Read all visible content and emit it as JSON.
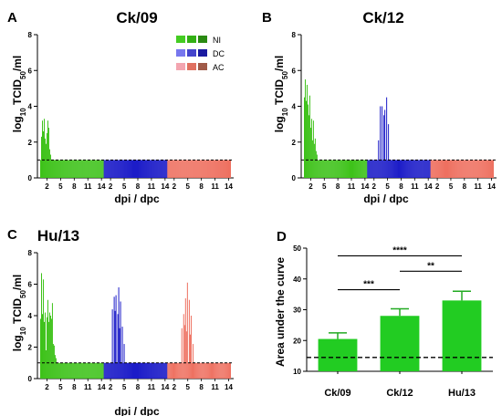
{
  "figure": {
    "panels": [
      {
        "letter": "A",
        "title": "Ck/09"
      },
      {
        "letter": "B",
        "title": "Ck/12"
      },
      {
        "letter": "C",
        "title": "Hu/13"
      },
      {
        "letter": "D",
        "title": ""
      }
    ]
  },
  "colors": {
    "NI": "#3ec21a",
    "DC": "#1c1cc8",
    "AC": "#ee7060",
    "legend_NI": [
      "#44cc22",
      "#33b015",
      "#2a8a12"
    ],
    "legend_DC": [
      "#7777ee",
      "#4444cc",
      "#1a1aa0"
    ],
    "legend_AC": [
      "#f3a5b0",
      "#e07060",
      "#a05a48"
    ],
    "bar": "#22cc22",
    "errorbar": "#22aa22"
  },
  "chart_data": [
    {
      "type": "bar",
      "panel": "A",
      "title": "Ck/09",
      "ylabel": "log10 TCID50/ml",
      "xlabel": "dpi / dpc",
      "ylim": [
        0,
        8
      ],
      "yticks": [
        0,
        2,
        4,
        6,
        8
      ],
      "day_ticks": [
        "2",
        "5",
        "8",
        "11",
        "14"
      ],
      "detection_limit": 1,
      "legend": [
        "NI",
        "DC",
        "AC"
      ],
      "legend_placement": "top-right",
      "series": [
        {
          "name": "NI",
          "values": [
            1,
            2.3,
            3.2,
            2.6,
            3.3,
            2.2,
            1.9,
            2.5,
            3.2,
            2.8,
            1.6,
            1.3,
            1,
            1,
            1,
            1,
            1,
            1,
            1,
            1,
            1,
            1,
            1,
            1,
            1,
            1,
            1,
            1,
            1,
            1,
            1,
            1,
            1,
            1,
            1,
            1,
            1,
            1,
            1,
            1,
            1,
            1,
            1,
            1,
            1,
            1,
            1,
            1,
            1,
            1,
            1,
            1,
            1,
            1,
            1,
            1,
            1,
            1,
            1,
            1,
            1,
            1,
            1,
            1,
            1,
            1,
            1,
            1,
            1,
            1
          ]
        },
        {
          "name": "DC",
          "values": [
            1,
            1,
            1,
            1,
            1,
            1,
            1,
            1,
            1,
            1,
            1,
            1,
            1,
            1,
            1,
            1,
            1,
            1,
            1,
            1,
            1,
            1,
            1,
            1,
            1,
            1,
            1,
            1,
            1,
            1,
            1,
            1,
            1,
            1,
            1,
            1,
            1,
            1,
            1,
            1,
            1,
            1,
            1,
            1,
            1,
            1,
            1,
            1,
            1,
            1,
            1,
            1,
            1,
            1,
            1,
            1,
            1,
            1,
            1,
            1,
            1,
            1,
            1,
            1,
            1,
            1,
            1,
            1,
            1,
            1
          ]
        },
        {
          "name": "AC",
          "values": [
            1,
            1,
            1,
            1,
            1,
            1,
            1,
            1,
            1,
            1,
            1,
            1,
            1,
            1,
            1,
            1,
            1,
            1,
            1,
            1,
            1,
            1,
            1,
            1,
            1,
            1,
            1,
            1,
            1,
            1,
            1,
            1,
            1,
            1,
            1,
            1,
            1,
            1,
            1,
            1,
            1,
            1,
            1,
            1,
            1,
            1,
            1,
            1,
            1,
            1,
            1,
            1,
            1,
            1,
            1,
            1,
            1,
            1,
            1,
            1,
            1,
            1,
            1,
            1,
            1,
            1,
            1,
            1,
            1,
            1
          ]
        }
      ]
    },
    {
      "type": "bar",
      "panel": "B",
      "title": "Ck/12",
      "ylabel": "log10 TCID50/ml",
      "xlabel": "dpi / dpc",
      "ylim": [
        0,
        8
      ],
      "yticks": [
        0,
        2,
        4,
        6,
        8
      ],
      "day_ticks": [
        "2",
        "5",
        "8",
        "11",
        "14"
      ],
      "detection_limit": 1,
      "series": [
        {
          "name": "NI",
          "values": [
            4.5,
            5.5,
            4.3,
            5.2,
            4.1,
            3.5,
            4.6,
            2.8,
            3.3,
            2.1,
            3.2,
            1.9,
            2.2,
            1.5,
            1.3,
            1,
            1,
            1,
            1,
            1,
            1,
            1,
            1,
            1,
            1,
            1,
            1,
            1,
            1,
            1,
            1,
            1,
            1,
            1,
            1,
            1,
            1,
            1,
            1,
            1,
            1,
            1,
            1,
            1,
            1,
            1,
            1,
            1,
            1,
            1,
            1,
            1,
            1,
            1,
            1,
            1,
            1,
            1,
            1,
            1,
            1,
            1,
            1,
            1,
            1,
            1,
            1,
            1,
            1,
            1
          ]
        },
        {
          "name": "DC",
          "values": [
            1,
            1,
            1,
            1,
            1,
            1,
            1,
            1,
            1,
            1,
            1,
            1,
            2.1,
            1,
            4,
            1,
            4,
            1,
            3.5,
            3.8,
            1,
            4.5,
            1,
            3,
            1,
            1,
            1,
            1,
            1,
            1,
            1,
            1,
            1,
            1,
            1,
            1,
            1,
            1,
            1,
            1,
            1,
            1,
            1,
            1,
            1,
            1,
            1,
            1,
            1,
            1,
            1,
            1,
            1,
            1,
            1,
            1,
            1,
            1,
            1,
            1,
            1,
            1,
            1,
            1,
            1,
            1,
            1,
            1,
            1,
            1
          ]
        },
        {
          "name": "AC",
          "values": [
            1,
            1,
            1,
            1,
            1,
            1,
            1,
            1,
            1,
            1,
            1,
            1,
            1,
            1,
            1,
            1,
            1,
            1,
            1,
            1,
            1,
            1,
            1,
            1,
            1,
            1,
            1,
            1,
            1,
            1,
            1,
            1,
            1,
            1,
            1,
            1,
            1,
            1,
            1,
            1,
            1,
            1,
            1,
            1,
            1,
            1,
            1,
            1,
            1,
            1,
            1,
            1,
            1,
            1,
            1,
            1,
            1,
            1,
            1,
            1,
            1,
            1,
            1,
            1,
            1,
            1,
            1,
            1,
            1,
            1
          ]
        }
      ]
    },
    {
      "type": "bar",
      "panel": "C",
      "title": "Hu/13",
      "ylabel": "log10 TCID50/ml",
      "xlabel": "dpi / dpc",
      "ylim": [
        0,
        8
      ],
      "yticks": [
        0,
        2,
        4,
        6,
        8
      ],
      "day_ticks": [
        "2",
        "5",
        "8",
        "11",
        "14"
      ],
      "detection_limit": 1,
      "series": [
        {
          "name": "NI",
          "values": [
            3.8,
            6.7,
            4.1,
            6.3,
            3.6,
            4.2,
            1.8,
            3.9,
            5,
            3.6,
            4.2,
            4,
            3.8,
            4.8,
            2.2,
            2.1,
            1.5,
            1.3,
            1,
            1,
            1,
            1,
            1,
            1,
            1,
            1,
            1,
            1,
            1,
            1,
            1,
            1,
            1,
            1,
            1,
            1,
            1,
            1,
            1,
            1,
            1,
            1,
            1,
            1,
            1,
            1,
            1,
            1,
            1,
            1,
            1,
            1,
            1,
            1,
            1,
            1,
            1,
            1,
            1,
            1,
            1,
            1,
            1,
            1,
            1,
            1,
            1,
            1,
            1,
            1
          ]
        },
        {
          "name": "DC",
          "values": [
            1,
            1,
            1,
            1,
            1,
            1,
            1,
            1,
            1,
            4.4,
            1,
            5.2,
            4.3,
            5.3,
            1,
            4.1,
            5.8,
            3.2,
            4.9,
            1,
            3.3,
            1,
            2.2,
            1,
            1,
            1,
            1,
            1,
            1,
            1,
            1,
            1,
            1,
            1,
            1,
            1,
            1,
            1,
            1,
            1,
            1,
            1,
            1,
            1,
            1,
            1,
            1,
            1,
            1,
            1,
            1,
            1,
            1,
            1,
            1,
            1,
            1,
            1,
            1,
            1,
            1,
            1,
            1,
            1,
            1,
            1,
            1,
            1,
            1,
            1
          ]
        },
        {
          "name": "AC",
          "values": [
            1,
            1,
            1,
            1,
            1,
            1,
            1,
            1,
            1,
            1,
            1,
            1,
            1,
            1,
            1,
            3.2,
            1,
            4.1,
            3.4,
            5.1,
            3,
            6.1,
            1,
            5,
            2.8,
            4,
            1,
            2.2,
            1,
            1,
            1,
            1,
            1,
            1,
            1,
            1,
            1,
            1,
            1,
            1,
            1,
            1,
            1,
            1,
            1,
            1,
            1,
            1,
            1,
            1,
            1,
            1,
            1,
            1,
            1,
            1,
            1,
            1,
            1,
            1,
            1,
            1,
            1,
            1,
            1,
            1,
            1,
            1
          ]
        }
      ]
    },
    {
      "type": "bar",
      "panel": "D",
      "title": "",
      "ylabel": "Area under the curve",
      "xlabel": "",
      "ylim": [
        10,
        50
      ],
      "yticks": [
        10,
        20,
        30,
        40,
        50
      ],
      "categories": [
        "Ck/09",
        "Ck/12",
        "Hu/13"
      ],
      "values": [
        20.5,
        28,
        33
      ],
      "errors": [
        2,
        2.3,
        3
      ],
      "reference_line": 14.5,
      "significance": [
        {
          "from": "Ck/09",
          "to": "Hu/13",
          "label": "****"
        },
        {
          "from": "Ck/12",
          "to": "Hu/13",
          "label": "**"
        },
        {
          "from": "Ck/09",
          "to": "Ck/12",
          "label": "***"
        }
      ]
    }
  ]
}
